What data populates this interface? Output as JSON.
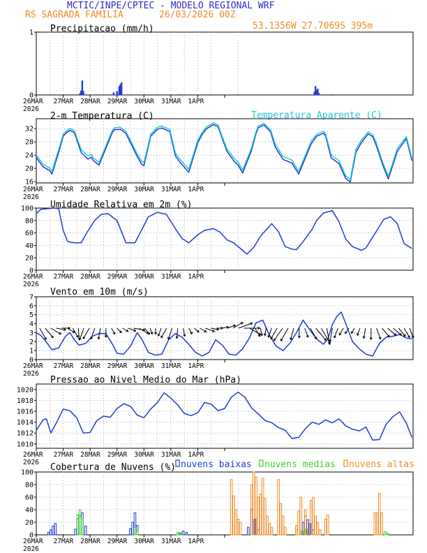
{
  "header": {
    "title": "MCTIC/INPE/CPTEC - MODELO REGIONAL WRF",
    "location": "RS SAGRADA FAMILIA",
    "run": "26/03/2026 00Z",
    "coords": "53.1356W 27.7069S 395m"
  },
  "colors": {
    "blue": "#1f3bd6",
    "cyan": "#22c8d2",
    "orange": "#f08a24",
    "green": "#3fcf2a",
    "title_blue": "#2b2bd0",
    "header_orange": "#f08a24"
  },
  "chart_data": [
    {
      "type": "bar",
      "title": "Precipitacao (mm/h)",
      "xlabel": "",
      "ylabel": "",
      "ylim": [
        0,
        1
      ],
      "yticks": [
        "0",
        "1"
      ],
      "xticks": [
        "26MAR",
        "27MAR",
        "28MAR",
        "29MAR",
        "30MAR",
        "31MAR",
        "1APR"
      ],
      "year_label": "2026",
      "x_unit": "hours since 26MAR 00Z",
      "x": [
        39,
        40,
        41,
        42,
        69,
        72,
        74,
        75,
        76,
        128,
        248,
        249,
        250,
        251,
        252,
        263,
        264
      ],
      "values": [
        0.03,
        0.07,
        0.23,
        0.06,
        0.04,
        0.06,
        0.14,
        0.17,
        0.2,
        0.01,
        0.05,
        0.14,
        0.07,
        0.1,
        0.03,
        0.01,
        0.01
      ]
    },
    {
      "type": "line",
      "title": "2-m Temperatura (C)",
      "xlabel": "",
      "ylabel": "",
      "ylim": [
        15.6,
        35
      ],
      "yticks": [
        "16",
        "20",
        "24",
        "28",
        "32"
      ],
      "xticks": [
        "26MAR",
        "27MAR",
        "28MAR",
        "29MAR",
        "30MAR",
        "31MAR",
        "1APR"
      ],
      "year_label": "2026",
      "series": [
        {
          "name": "Temperatura",
          "x": [
            0,
            6,
            12,
            14,
            20,
            24,
            27,
            30,
            34,
            40,
            46,
            49,
            51,
            56,
            65,
            68,
            70,
            75,
            80,
            90,
            94,
            96,
            102,
            108,
            112,
            119,
            124,
            128,
            136,
            144,
            148,
            152,
            158,
            162,
            170,
            176,
            180,
            184,
            192,
            196,
            198,
            203,
            209,
            213,
            220,
            228,
            234,
            241,
            245,
            250,
            256,
            258,
            263,
            270,
            276,
            280,
            285,
            290,
            296,
            300,
            303,
            309,
            314,
            322,
            330,
            335
          ],
          "y": [
            23.3,
            20.5,
            19.3,
            18.3,
            24.8,
            29.7,
            30.8,
            31.5,
            30.8,
            24.8,
            22.8,
            23.4,
            22.3,
            21.0,
            28.5,
            31.0,
            31.7,
            31.8,
            30.5,
            23.6,
            21.2,
            20.8,
            29.7,
            31.8,
            32.2,
            31.1,
            23.8,
            21.9,
            18.8,
            27.7,
            30.3,
            32.0,
            33.2,
            32.6,
            25.2,
            22.3,
            21.0,
            18.6,
            25.5,
            30.5,
            32.3,
            33.1,
            31.0,
            26.5,
            22.7,
            21.6,
            18.3,
            24.0,
            27.3,
            29.7,
            30.6,
            29.8,
            23.2,
            21.4,
            16.9,
            15.9,
            24.8,
            27.8,
            30.4,
            29.6,
            27.1,
            21.0,
            16.8,
            25.2,
            29.0,
            22.3
          ]
        },
        {
          "name": "Temperatura Aparente (C)",
          "x": [
            0,
            6,
            12,
            14,
            20,
            24,
            27,
            30,
            34,
            40,
            46,
            49,
            51,
            56,
            65,
            68,
            70,
            75,
            80,
            90,
            94,
            96,
            102,
            108,
            112,
            119,
            124,
            128,
            136,
            144,
            148,
            152,
            158,
            162,
            170,
            176,
            180,
            184,
            192,
            196,
            198,
            203,
            209,
            213,
            220,
            228,
            234,
            241,
            245,
            250,
            256,
            258,
            263,
            270,
            276,
            280,
            285,
            290,
            296,
            300,
            303,
            309,
            314,
            322,
            330,
            335
          ],
          "y": [
            24.1,
            21.2,
            20.1,
            19.1,
            25.7,
            30.3,
            31.4,
            32.1,
            31.4,
            25.7,
            23.7,
            24.2,
            23.1,
            21.8,
            29.2,
            31.6,
            32.3,
            32.4,
            31.1,
            24.4,
            22.1,
            21.7,
            30.3,
            32.4,
            32.8,
            31.7,
            24.7,
            22.8,
            19.7,
            28.5,
            30.9,
            32.6,
            33.7,
            33.1,
            25.9,
            23.2,
            21.9,
            19.5,
            26.3,
            31.1,
            32.8,
            33.6,
            31.6,
            27.4,
            23.6,
            22.5,
            19.1,
            24.8,
            28.1,
            30.3,
            31.2,
            30.4,
            24.1,
            22.3,
            17.7,
            16.6,
            25.7,
            28.6,
            31.0,
            30.2,
            27.9,
            21.8,
            17.6,
            26.0,
            29.6,
            23.1
          ]
        }
      ],
      "legend": "top-right"
    },
    {
      "type": "line",
      "title": "Umidade Relativa em 2m (%)",
      "xlabel": "",
      "ylabel": "",
      "ylim": [
        0,
        100
      ],
      "yticks": [
        "0",
        "20",
        "40",
        "60",
        "80",
        "100"
      ],
      "xticks": [
        "26MAR",
        "27MAR",
        "28MAR",
        "29MAR",
        "30MAR",
        "31MAR",
        "1APR"
      ],
      "year_label": "2026",
      "series": [
        {
          "name": "Umidade Relativa",
          "x": [
            0,
            4,
            16,
            20,
            24,
            28,
            34,
            40,
            46,
            52,
            58,
            64,
            72,
            80,
            88,
            94,
            100,
            108,
            116,
            124,
            130,
            136,
            144,
            150,
            158,
            164,
            170,
            176,
            184,
            188,
            194,
            200,
            210,
            216,
            222,
            228,
            232,
            238,
            246,
            250,
            256,
            264,
            270,
            276,
            282,
            290,
            294,
            302,
            310,
            316,
            322,
            328,
            335
          ],
          "y": [
            91,
            98,
            100,
            99,
            64,
            46,
            44,
            44,
            63,
            80,
            90,
            91,
            80,
            44,
            44,
            65,
            86,
            93,
            90,
            67,
            51,
            44,
            57,
            64,
            67,
            61,
            49,
            44,
            32,
            26,
            37,
            55,
            75,
            62,
            38,
            34,
            33,
            46,
            66,
            80,
            92,
            96,
            78,
            50,
            38,
            32,
            36,
            59,
            82,
            86,
            75,
            43,
            35
          ]
        }
      ]
    },
    {
      "type": "line",
      "title": "Vento em 10m (m/s)",
      "xlabel": "",
      "ylabel": "",
      "ylim": [
        0,
        7
      ],
      "yticks": [
        "0",
        "1",
        "2",
        "3",
        "4",
        "5",
        "6",
        "7"
      ],
      "xticks": [
        "26MAR",
        "27MAR",
        "28MAR",
        "29MAR",
        "30MAR",
        "31MAR",
        "1APR"
      ],
      "year_label": "2026",
      "series": [
        {
          "name": "Vento",
          "x": [
            0,
            4,
            8,
            14,
            20,
            26,
            30,
            34,
            38,
            44,
            50,
            56,
            62,
            68,
            72,
            78,
            84,
            90,
            94,
            100,
            106,
            112,
            118,
            124,
            130,
            136,
            142,
            148,
            154,
            160,
            166,
            172,
            178,
            184,
            190,
            196,
            202,
            208,
            214,
            220,
            226,
            232,
            238,
            244,
            250,
            256,
            260,
            264,
            268,
            272,
            276,
            282,
            288,
            294,
            300,
            306,
            312,
            318,
            324,
            330,
            335
          ],
          "y": [
            3.0,
            2.7,
            2.1,
            1.1,
            1.3,
            2.6,
            3.0,
            2.2,
            1.6,
            1.8,
            2.6,
            2.9,
            2.9,
            1.7,
            0.7,
            0.6,
            1.5,
            3.0,
            2.3,
            0.8,
            0.5,
            0.6,
            2.2,
            2.9,
            2.5,
            1.7,
            0.8,
            0.4,
            0.8,
            2.2,
            1.6,
            0.6,
            0.5,
            1.2,
            2.4,
            4.1,
            4.4,
            2.7,
            1.5,
            1.0,
            1.8,
            3.0,
            4.4,
            3.3,
            2.3,
            1.7,
            2.3,
            3.9,
            4.8,
            5.3,
            4.0,
            2.0,
            1.2,
            0.6,
            0.4,
            1.8,
            2.5,
            2.6,
            2.8,
            2.4,
            2.3
          ]
        }
      ],
      "vector_level": 3.5,
      "vector_dir_deg": [
        150,
        140,
        120,
        100,
        90,
        120,
        150,
        175,
        200,
        210,
        200,
        190,
        180,
        150,
        135,
        120,
        110,
        100,
        120,
        140,
        160,
        180,
        200,
        210,
        200,
        185,
        170,
        150,
        130,
        120,
        110,
        100,
        90,
        80,
        70,
        60,
        70,
        90,
        120,
        150,
        170,
        190,
        200,
        210,
        215,
        210,
        195,
        180,
        160,
        150,
        140,
        150,
        170,
        190,
        200,
        210,
        215,
        210,
        200,
        190,
        180,
        160,
        140,
        130,
        130,
        140,
        150,
        160
      ],
      "vector_speed": [
        3.2,
        3.0,
        2.8,
        2.0,
        1.5,
        1.6,
        2.3,
        2.8,
        3.0,
        2.9,
        2.7,
        2.5,
        1.8,
        1.0,
        0.8,
        0.9,
        1.5,
        2.6,
        2.5,
        1.4,
        0.8,
        0.7,
        1.5,
        2.5,
        2.7,
        2.2,
        1.5,
        0.9,
        0.7,
        1.2,
        2.0,
        1.4,
        0.8,
        0.9,
        1.6,
        2.6,
        3.8,
        4.2,
        3.2,
        2.0,
        1.3,
        1.2,
        2.0,
        3.0,
        4.0,
        3.8,
        2.8,
        2.0,
        2.0,
        3.0,
        4.2,
        4.8,
        4.5,
        3.5,
        2.2,
        1.4,
        0.9,
        0.7,
        1.3,
        2.2,
        2.6,
        2.7,
        2.6,
        2.5,
        2.4,
        2.3,
        2.4,
        2.3
      ]
    },
    {
      "type": "line",
      "title": "Pressao ao Nivel Medio do Mar (hPa)",
      "xlabel": "",
      "ylabel": "",
      "ylim": [
        1009.2,
        1021
      ],
      "yticks": [
        "1010",
        "1012",
        "1014",
        "1016",
        "1018",
        "1020"
      ],
      "xticks": [
        "26MAR",
        "27MAR",
        "28MAR",
        "29MAR",
        "30MAR",
        "31MAR",
        "1APR"
      ],
      "year_label": "2026",
      "series": [
        {
          "name": "Pressao",
          "x": [
            0,
            6,
            9,
            13,
            18,
            24,
            30,
            36,
            42,
            48,
            54,
            60,
            66,
            72,
            78,
            84,
            90,
            96,
            102,
            108,
            114,
            120,
            126,
            132,
            138,
            144,
            150,
            156,
            162,
            168,
            174,
            180,
            186,
            192,
            198,
            204,
            210,
            216,
            222,
            228,
            234,
            240,
            246,
            252,
            258,
            264,
            270,
            276,
            282,
            288,
            294,
            300,
            306,
            312,
            318,
            324,
            330,
            335
          ],
          "y": [
            1012.5,
            1014.4,
            1014.6,
            1012.0,
            1013.9,
            1016.4,
            1016.1,
            1014.8,
            1012.0,
            1012.1,
            1014.3,
            1015.1,
            1014.9,
            1016.5,
            1017.4,
            1016.9,
            1015.3,
            1014.8,
            1016.4,
            1017.6,
            1019.4,
            1018.4,
            1017.2,
            1015.6,
            1015.2,
            1015.7,
            1017.6,
            1017.3,
            1016.1,
            1016.5,
            1018.6,
            1019.5,
            1018.6,
            1016.6,
            1015.5,
            1014.3,
            1013.9,
            1013.0,
            1012.5,
            1011.0,
            1011.2,
            1012.8,
            1014.0,
            1013.6,
            1014.4,
            1013.9,
            1014.6,
            1013.3,
            1012.7,
            1012.4,
            1013.1,
            1010.7,
            1010.8,
            1013.6,
            1015.0,
            1015.9,
            1013.8,
            1011.2
          ]
        }
      ]
    },
    {
      "type": "bar",
      "title": "Cobertura de Nuvens (%)",
      "xlabel": "",
      "ylabel": "",
      "ylim": [
        0,
        100
      ],
      "yticks": [
        "0",
        "20",
        "40",
        "60",
        "80",
        "100"
      ],
      "xticks": [
        "26MAR",
        "27MAR",
        "28MAR",
        "29MAR",
        "30MAR",
        "31MAR",
        "1APR"
      ],
      "year_label": "2026",
      "series": [
        {
          "name": "nuvens baixas",
          "x": [
            11,
            13,
            15,
            17,
            35,
            37,
            39,
            41,
            44,
            84,
            86,
            88,
            90,
            128,
            131,
            134,
            189,
            192,
            195,
            198,
            238,
            240,
            242,
            244,
            247
          ],
          "values": [
            4,
            8,
            14,
            18,
            9,
            26,
            30,
            35,
            14,
            10,
            20,
            35,
            15,
            3,
            6,
            4,
            12,
            40,
            25,
            8,
            20,
            30,
            24,
            18,
            8
          ]
        },
        {
          "name": "nuvens medias",
          "x": [
            37,
            39,
            41,
            88,
            90,
            126,
            129,
            232,
            237,
            241,
            311,
            313
          ],
          "values": [
            32,
            40,
            26,
            12,
            6,
            4,
            3,
            8,
            6,
            10,
            5,
            3
          ]
        },
        {
          "name": "nuvens altas",
          "x": [
            174,
            176,
            178,
            180,
            182,
            192,
            194,
            196,
            198,
            200,
            202,
            204,
            206,
            208,
            210,
            216,
            218,
            220,
            222,
            232,
            234,
            236,
            240,
            245,
            247,
            249,
            251,
            253,
            258,
            260,
            302,
            304,
            306,
            308
          ],
          "values": [
            88,
            62,
            40,
            25,
            20,
            80,
            100,
            92,
            60,
            65,
            90,
            58,
            30,
            18,
            12,
            88,
            50,
            30,
            12,
            15,
            38,
            60,
            40,
            55,
            60,
            30,
            20,
            8,
            25,
            32,
            35,
            35,
            66,
            35
          ]
        }
      ],
      "legend": "top-right"
    }
  ]
}
